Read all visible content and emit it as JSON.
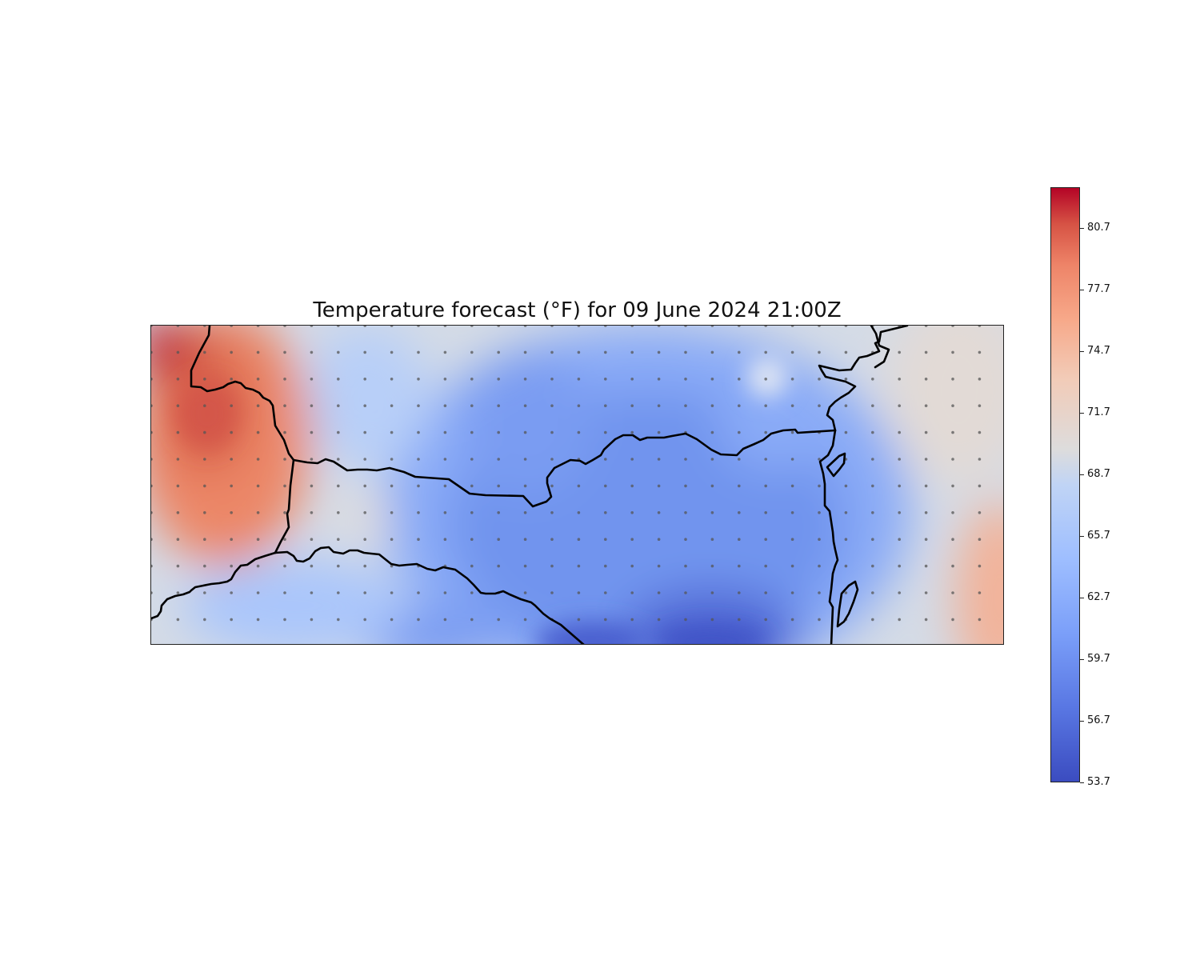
{
  "map": {
    "title": "Temperature forecast (°F) for 09 June 2024 21:00Z",
    "units": "°F",
    "colormap": "coolwarm",
    "colors": {
      "low": "#3b4cc0",
      "mid": "#dddcdc",
      "high": "#b40426",
      "boundary": "#000000",
      "grid_points": "#555555"
    },
    "colorbar": {
      "min": 53.7,
      "max": 82.7,
      "ticks": [
        "53.7",
        "56.7",
        "59.7",
        "62.7",
        "65.7",
        "68.7",
        "71.7",
        "74.7",
        "77.7",
        "80.7"
      ]
    },
    "features": [
      "state boundaries",
      "coastline",
      "forecast grid points"
    ]
  }
}
